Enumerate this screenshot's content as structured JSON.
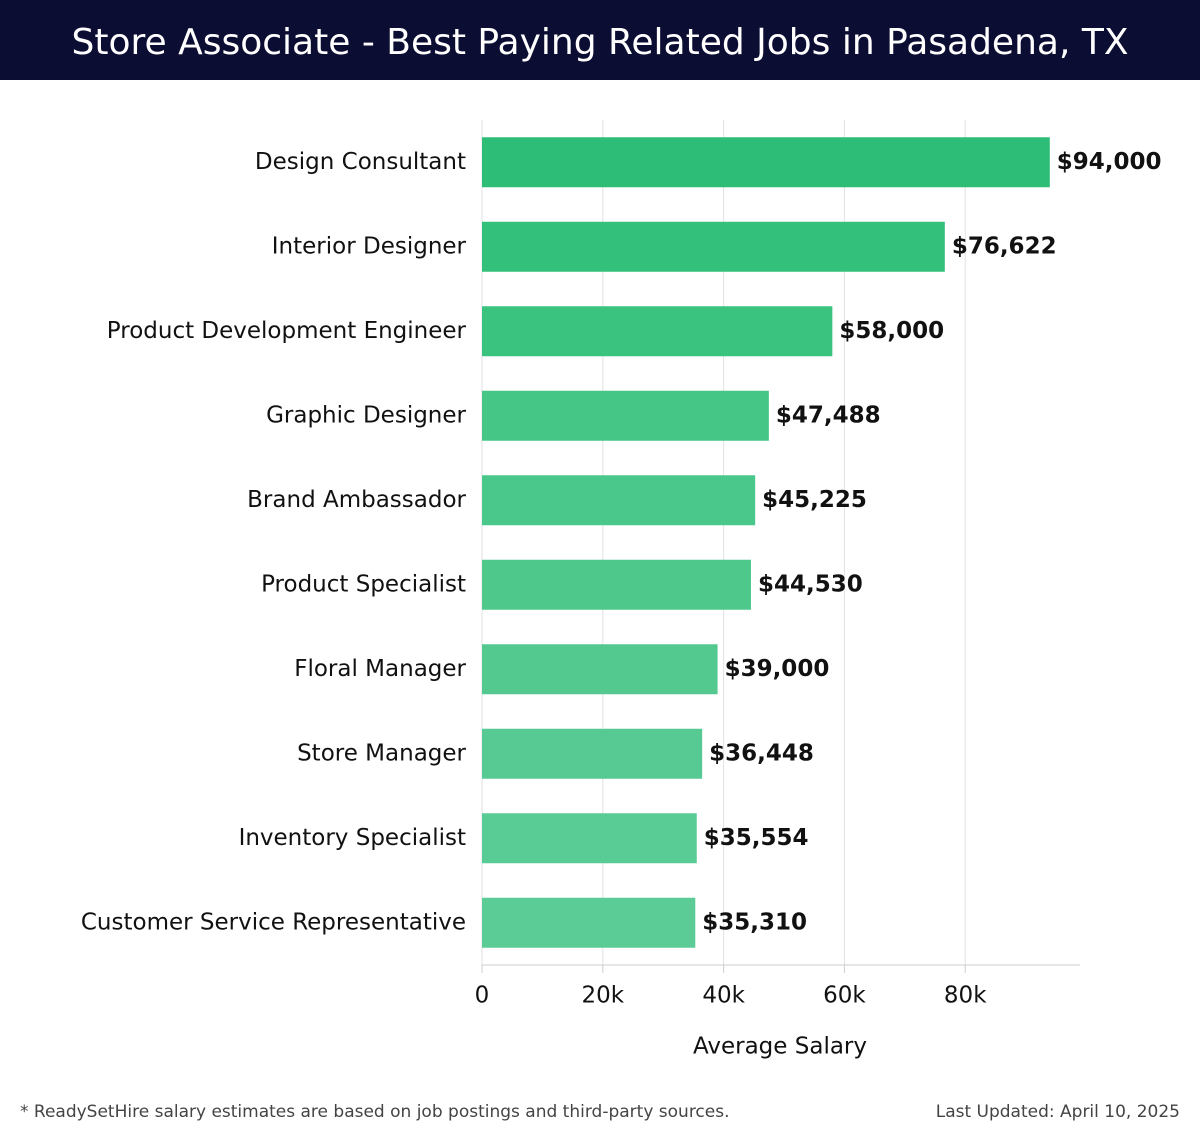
{
  "chart_data": {
    "type": "hbar",
    "title": "Store Associate - Best Paying Related Jobs in Pasadena, TX",
    "x_label": "Average Salary",
    "categories": [
      "Design Consultant",
      "Interior Designer",
      "Product Development Engineer",
      "Graphic Designer",
      "Brand Ambassador",
      "Product Specialist",
      "Floral Manager",
      "Store Manager",
      "Inventory Specialist",
      "Customer Service Representative"
    ],
    "values": [
      94000,
      76622,
      58000,
      47488,
      45225,
      44530,
      39000,
      36448,
      35554,
      35310
    ],
    "value_labels": [
      "$94,000",
      "$76,622",
      "$58,000",
      "$47,488",
      "$45,225",
      "$44,530",
      "$39,000",
      "$36,448",
      "$35,554",
      "$35,310"
    ],
    "colors": [
      "#2dbd77",
      "#33c07b",
      "#3ac27f",
      "#45c586",
      "#4ac78a",
      "#4fc88c",
      "#53c98f",
      "#56ca92",
      "#59cb94",
      "#5bcc96"
    ],
    "xlim": [
      0,
      99000
    ],
    "xticks": [
      0,
      {
        "value": 20000,
        "label": "20k"
      },
      {
        "value": 40000,
        "label": "40k"
      },
      {
        "value": 60000,
        "label": "60k"
      },
      {
        "value": 80000,
        "label": "80k"
      }
    ],
    "grid": true,
    "footnote": "* ReadySetHire salary estimates are based on job postings and third-party sources.",
    "updated": "Last Updated: April 10, 2025"
  }
}
